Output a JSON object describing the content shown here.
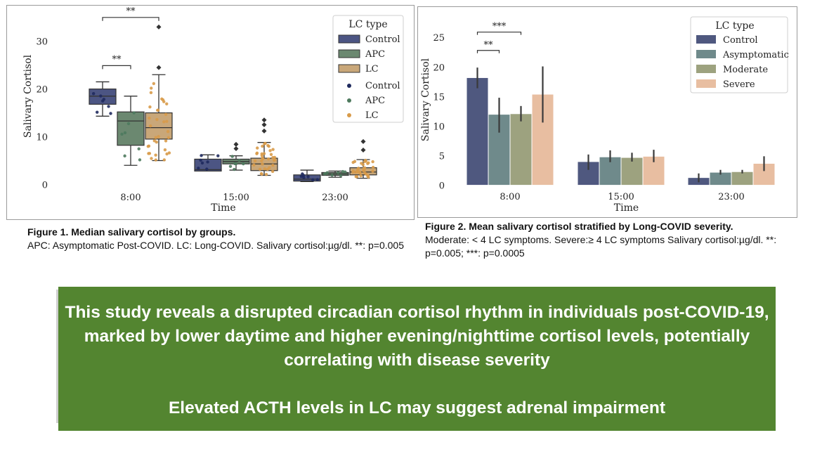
{
  "chart_data": [
    {
      "type": "box",
      "title": "",
      "xlabel": "Time",
      "ylabel": "Salivary Cortisol",
      "ylim": [
        -2,
        36
      ],
      "yticks": [
        0,
        10,
        20,
        30
      ],
      "categories": [
        "8:00",
        "15:00",
        "23:00"
      ],
      "legend": {
        "title": "LC type",
        "position": "top-right",
        "box_entries": [
          "Control",
          "APC",
          "LC"
        ],
        "point_entries": [
          "Control",
          "APC",
          "LC"
        ]
      },
      "series": [
        {
          "name": "Control",
          "color": "#4c5583",
          "point_color": "#1f2a5e",
          "boxes": [
            {
              "q1": 16.8,
              "median": 18.5,
              "q3": 20.0,
              "whisker_low": 14.3,
              "whisker_high": 21.5,
              "outliers": []
            },
            {
              "q1": 2.8,
              "median": 3.1,
              "q3": 5.3,
              "whisker_low": 2.8,
              "whisker_high": 6.2,
              "outliers": []
            },
            {
              "q1": 0.7,
              "median": 1.1,
              "q3": 2.0,
              "whisker_low": 0.6,
              "whisker_high": 3.0,
              "outliers": []
            }
          ]
        },
        {
          "name": "APC",
          "color": "#6b8870",
          "point_color": "#4e7a5e",
          "boxes": [
            {
              "q1": 8.2,
              "median": 13.3,
              "q3": 15.2,
              "whisker_low": 4.0,
              "whisker_high": 18.5,
              "outliers": []
            },
            {
              "q1": 4.3,
              "median": 4.8,
              "q3": 5.3,
              "whisker_low": 3.0,
              "whisker_high": 6.0,
              "outliers": [
                7.5,
                8.4
              ]
            },
            {
              "q1": 1.9,
              "median": 2.2,
              "q3": 2.5,
              "whisker_low": 1.5,
              "whisker_high": 2.8,
              "outliers": []
            }
          ]
        },
        {
          "name": "LC",
          "color": "#c9a779",
          "point_color": "#d89b4a",
          "boxes": [
            {
              "q1": 9.5,
              "median": 11.9,
              "q3": 15.0,
              "whisker_low": 5.0,
              "whisker_high": 23.0,
              "outliers": [
                24.5,
                33.0
              ]
            },
            {
              "q1": 2.9,
              "median": 4.3,
              "q3": 5.5,
              "whisker_low": 1.9,
              "whisker_high": 8.8,
              "outliers": [
                11.2,
                12.5,
                13.5
              ]
            },
            {
              "q1": 2.0,
              "median": 2.6,
              "q3": 3.5,
              "whisker_low": 1.3,
              "whisker_high": 5.2,
              "outliers": [
                7.2,
                9.0
              ]
            }
          ]
        }
      ],
      "annotations": [
        {
          "text": "**",
          "from": {
            "category": "8:00",
            "series": "Control"
          },
          "to": {
            "category": "8:00",
            "series": "LC"
          },
          "y": 35.0
        },
        {
          "text": "**",
          "from": {
            "category": "8:00",
            "series": "Control"
          },
          "to": {
            "category": "8:00",
            "series": "APC"
          },
          "y": 24.9
        }
      ]
    },
    {
      "type": "bar",
      "title": "",
      "xlabel": "Time",
      "ylabel": "Salivary Cortisol",
      "ylim": [
        -1,
        28
      ],
      "yticks": [
        0,
        5,
        10,
        15,
        20,
        25
      ],
      "categories": [
        "8:00",
        "15:00",
        "23:00"
      ],
      "legend": {
        "title": "LC type",
        "position": "top-right"
      },
      "series": [
        {
          "name": "Control",
          "color": "#4f587f",
          "values": [
            18.2,
            4.0,
            1.3
          ],
          "err_low": [
            16.4,
            2.6,
            0.5
          ],
          "err_high": [
            19.9,
            5.2,
            2.0
          ]
        },
        {
          "name": "Asymptomatic",
          "color": "#6f8a8b",
          "values": [
            12.0,
            4.8,
            2.2
          ],
          "err_low": [
            8.9,
            3.9,
            1.8
          ],
          "err_high": [
            14.8,
            5.9,
            2.6
          ]
        },
        {
          "name": "Moderate",
          "color": "#9da27f",
          "values": [
            12.1,
            4.7,
            2.3
          ],
          "err_low": [
            10.8,
            4.0,
            2.0
          ],
          "err_high": [
            13.4,
            5.5,
            2.6
          ]
        },
        {
          "name": "Severe",
          "color": "#e8bea1",
          "values": [
            15.4,
            4.9,
            3.7
          ],
          "err_low": [
            10.6,
            3.9,
            2.4
          ],
          "err_high": [
            20.1,
            6.0,
            4.9
          ]
        }
      ],
      "annotations": [
        {
          "text": "***",
          "from": {
            "category": "8:00",
            "series": "Control"
          },
          "to": {
            "category": "8:00",
            "series": "Moderate"
          },
          "y": 25.9
        },
        {
          "text": "**",
          "from": {
            "category": "8:00",
            "series": "Control"
          },
          "to": {
            "category": "8:00",
            "series": "Asymptomatic"
          },
          "y": 22.8
        }
      ]
    }
  ],
  "captions": {
    "fig1": {
      "title": "Figure 1. Median salivary cortisol by groups.",
      "body": "APC: Asymptomatic Post-COVID. LC: Long-COVID. Salivary cortisol:µg/dl. **: p=0.005"
    },
    "fig2": {
      "title": "Figure 2. Mean salivary cortisol stratified by Long-COVID severity.",
      "body": "Moderate: < 4 LC symptoms. Severe:≥  4 LC symptoms Salivary cortisol:µg/dl. **: p=0.005; ***: p=0.0005"
    }
  },
  "conclusion": {
    "line1": "This study reveals a disrupted circadian cortisol rhythm in individuals post-COVID-19, marked by lower daytime and higher evening/nighttime cortisol levels, potentially correlating with disease severity",
    "line2": "Elevated ACTH levels in LC may suggest adrenal impairment"
  }
}
